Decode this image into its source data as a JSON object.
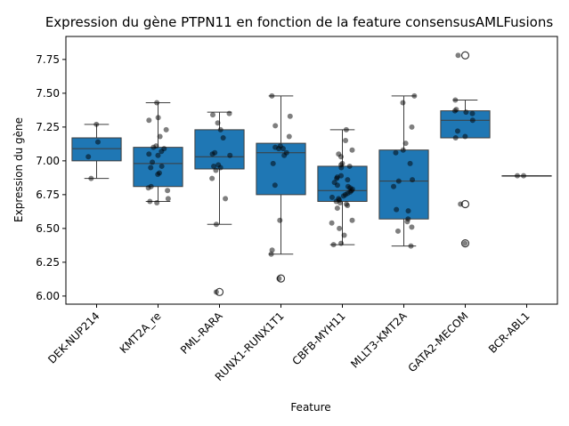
{
  "chart_data": {
    "type": "box",
    "title": "Expression du gène PTPN11 en fonction de la feature consensusAMLFusions",
    "xlabel": "Feature",
    "ylabel": "Expression du gène",
    "ylim": [
      5.94,
      7.92
    ],
    "yticks": [
      6.0,
      6.25,
      6.5,
      6.75,
      7.0,
      7.25,
      7.5,
      7.75
    ],
    "ytick_labels": [
      "6.00",
      "6.25",
      "6.50",
      "6.75",
      "7.00",
      "7.25",
      "7.50",
      "7.75"
    ],
    "categories": [
      "DEK-NUP214",
      "KMT2A_re",
      "PML-RARA",
      "RUNX1-RUNX1T1",
      "CBFB-MYH11",
      "MLLT3-KMT2A",
      "GATA2-MECOM",
      "BCR-ABL1"
    ],
    "box_color": "#1f77b4",
    "point_color": "#000000",
    "boxes": [
      {
        "category": "DEK-NUP214",
        "q1": 7.0,
        "median": 7.09,
        "q3": 7.17,
        "whisker_low": 6.87,
        "whisker_high": 7.27,
        "outliers": []
      },
      {
        "category": "KMT2A_re",
        "q1": 6.81,
        "median": 6.98,
        "q3": 7.1,
        "whisker_low": 6.7,
        "whisker_high": 7.43,
        "outliers": []
      },
      {
        "category": "PML-RARA",
        "q1": 6.94,
        "median": 7.03,
        "q3": 7.23,
        "whisker_low": 6.53,
        "whisker_high": 7.36,
        "outliers": [
          6.03
        ]
      },
      {
        "category": "RUNX1-RUNX1T1",
        "q1": 6.75,
        "median": 7.06,
        "q3": 7.13,
        "whisker_low": 6.31,
        "whisker_high": 7.48,
        "outliers": [
          6.13
        ]
      },
      {
        "category": "CBFB-MYH11",
        "q1": 6.7,
        "median": 6.78,
        "q3": 6.96,
        "whisker_low": 6.38,
        "whisker_high": 7.23,
        "outliers": []
      },
      {
        "category": "MLLT3-KMT2A",
        "q1": 6.57,
        "median": 6.85,
        "q3": 7.08,
        "whisker_low": 6.37,
        "whisker_high": 7.48,
        "outliers": []
      },
      {
        "category": "GATA2-MECOM",
        "q1": 7.17,
        "median": 7.3,
        "q3": 7.37,
        "whisker_low": 7.17,
        "whisker_high": 7.45,
        "outliers": [
          7.78,
          6.68,
          6.39
        ]
      },
      {
        "category": "BCR-ABL1",
        "q1": 6.89,
        "median": 6.89,
        "q3": 6.89,
        "whisker_low": 6.89,
        "whisker_high": 6.89,
        "outliers": []
      }
    ],
    "points": [
      {
        "category": "DEK-NUP214",
        "values": [
          7.27,
          7.14,
          7.03,
          6.87
        ]
      },
      {
        "category": "KMT2A_re",
        "values": [
          7.43,
          7.32,
          7.3,
          7.23,
          7.18,
          7.11,
          7.1,
          7.09,
          7.07,
          7.05,
          7.04,
          6.99,
          6.96,
          6.95,
          6.91,
          6.9,
          6.81,
          6.8,
          6.78,
          6.72,
          6.7,
          6.69
        ]
      },
      {
        "category": "PML-RARA",
        "values": [
          7.35,
          7.34,
          7.28,
          7.23,
          7.17,
          7.06,
          7.05,
          7.04,
          6.97,
          6.96,
          6.95,
          6.93,
          6.87,
          6.72,
          6.53,
          6.03
        ]
      },
      {
        "category": "RUNX1-RUNX1T1",
        "values": [
          7.48,
          7.33,
          7.26,
          7.18,
          7.11,
          7.1,
          7.09,
          7.09,
          7.06,
          7.04,
          6.98,
          6.82,
          6.56,
          6.34,
          6.31,
          6.13
        ]
      },
      {
        "category": "CBFB-MYH11",
        "values": [
          7.23,
          7.15,
          7.08,
          7.05,
          7.03,
          6.98,
          6.97,
          6.96,
          6.95,
          6.89,
          6.88,
          6.87,
          6.86,
          6.84,
          6.82,
          6.81,
          6.8,
          6.79,
          6.78,
          6.77,
          6.76,
          6.75,
          6.74,
          6.73,
          6.72,
          6.71,
          6.7,
          6.69,
          6.68,
          6.67,
          6.65,
          6.56,
          6.54,
          6.5,
          6.45,
          6.39,
          6.38
        ]
      },
      {
        "category": "MLLT3-KMT2A",
        "values": [
          7.48,
          7.43,
          7.25,
          7.13,
          7.08,
          7.06,
          6.98,
          6.86,
          6.85,
          6.81,
          6.64,
          6.63,
          6.57,
          6.55,
          6.51,
          6.48,
          6.37
        ]
      },
      {
        "category": "GATA2-MECOM",
        "values": [
          7.78,
          7.45,
          7.38,
          7.37,
          7.36,
          7.35,
          7.3,
          7.22,
          7.18,
          7.17,
          6.68,
          6.39
        ]
      },
      {
        "category": "BCR-ABL1",
        "values": [
          6.89,
          6.89
        ]
      }
    ]
  }
}
